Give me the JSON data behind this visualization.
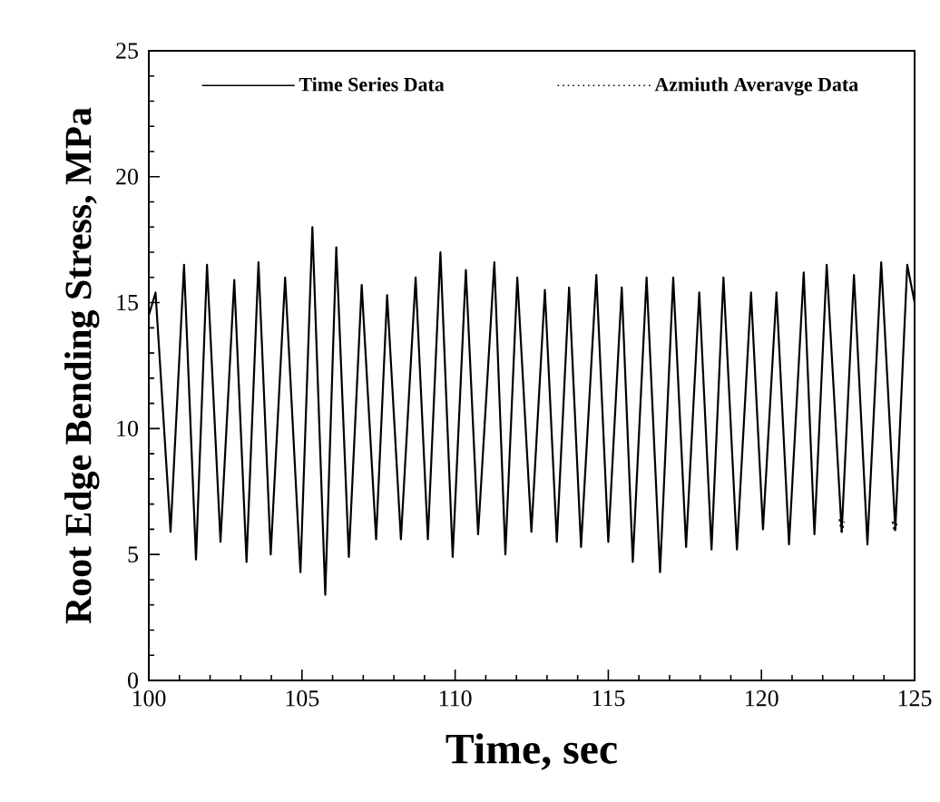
{
  "chart_data": {
    "type": "line",
    "xlabel": "Time, sec",
    "ylabel": "Root Edge Bending Stress, MPa",
    "xlim": [
      100,
      125
    ],
    "ylim": [
      0,
      25
    ],
    "xticks": [
      100,
      105,
      110,
      115,
      120,
      125
    ],
    "yticks": [
      0,
      5,
      10,
      15,
      20,
      25
    ],
    "grid": false,
    "legend": "top",
    "marker": "none",
    "series": [
      {
        "name": "Time Series Data",
        "color": "#000000",
        "line_style": "solid",
        "x": [
          100.0,
          100.22,
          100.71,
          101.15,
          101.54,
          101.9,
          102.34,
          102.79,
          103.19,
          103.58,
          103.98,
          104.45,
          104.95,
          105.34,
          105.76,
          106.12,
          106.53,
          106.95,
          107.42,
          107.78,
          108.23,
          108.71,
          109.11,
          109.52,
          109.92,
          110.35,
          110.75,
          111.28,
          111.64,
          112.03,
          112.49,
          112.93,
          113.32,
          113.72,
          114.11,
          114.61,
          115.0,
          115.44,
          115.8,
          116.25,
          116.69,
          117.12,
          117.54,
          117.97,
          118.37,
          118.76,
          119.2,
          119.66,
          120.05,
          120.49,
          120.9,
          121.38,
          121.73,
          122.13,
          122.62,
          123.02,
          123.46,
          123.91,
          124.37,
          124.76,
          125.0
        ],
        "values": [
          14.5,
          15.4,
          5.9,
          16.5,
          4.8,
          16.5,
          5.5,
          15.9,
          4.7,
          16.6,
          5.0,
          16.0,
          4.3,
          18.0,
          3.4,
          17.2,
          4.9,
          15.7,
          5.6,
          15.3,
          5.6,
          16.0,
          5.6,
          17.0,
          4.9,
          16.3,
          5.8,
          16.6,
          5.0,
          16.0,
          5.9,
          15.5,
          5.5,
          15.6,
          5.3,
          16.1,
          5.5,
          15.6,
          4.7,
          16.0,
          4.3,
          16.0,
          5.3,
          15.4,
          5.2,
          16.0,
          5.2,
          15.4,
          6.0,
          15.4,
          5.4,
          16.2,
          5.8,
          16.5,
          5.9,
          16.1,
          5.4,
          16.6,
          6.0,
          16.5,
          15.0
        ]
      },
      {
        "name": "Azmiuth Averavge Data",
        "color": "#000000",
        "line_style": "dotted",
        "x": [
          122.55,
          122.62,
          122.7,
          122.8,
          124.28,
          124.35,
          124.42
        ],
        "values": [
          6.4,
          5.9,
          6.3,
          null,
          6.3,
          5.9,
          6.3
        ]
      }
    ]
  }
}
